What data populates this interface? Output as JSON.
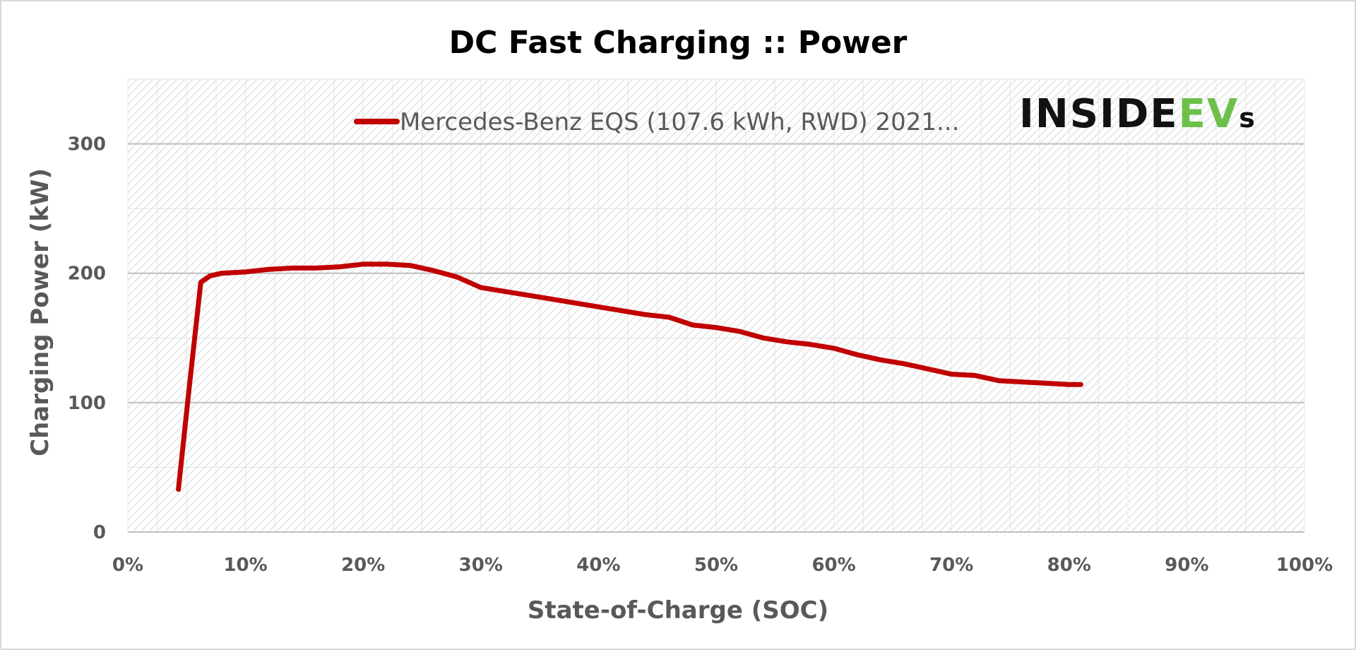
{
  "chart_data": {
    "type": "line",
    "title": "DC Fast Charging :: Power",
    "xlabel": "State-of-Charge  (SOC)",
    "ylabel": "Charging Power (kW)",
    "xlim": [
      0,
      100
    ],
    "ylim": [
      0,
      350
    ],
    "x_ticks": [
      0,
      10,
      20,
      30,
      40,
      50,
      60,
      70,
      80,
      90,
      100
    ],
    "x_tick_labels": [
      "0%",
      "10%",
      "20%",
      "30%",
      "40%",
      "50%",
      "60%",
      "70%",
      "80%",
      "90%",
      "100%"
    ],
    "y_ticks": [
      0,
      100,
      200,
      300
    ],
    "y_tick_labels": [
      "0",
      "100",
      "200",
      "300"
    ],
    "grid": true,
    "legend_position": "top-right",
    "series": [
      {
        "name": "Mercedes-Benz EQS (107.6 kWh, RWD) 2021...",
        "color": "#C00000",
        "x": [
          4.3,
          5.2,
          6.2,
          7.0,
          8.0,
          10,
          12,
          14,
          16,
          18,
          20,
          22,
          24,
          26,
          28,
          30,
          32,
          34,
          36,
          38,
          40,
          42,
          44,
          46,
          48,
          50,
          52,
          54,
          56,
          58,
          60,
          62,
          64,
          66,
          68,
          70,
          72,
          74,
          76,
          78,
          80,
          81
        ],
        "values": [
          33,
          110,
          193,
          198,
          200,
          201,
          203,
          204,
          204,
          205,
          207,
          207,
          206,
          202,
          197,
          189,
          186,
          183,
          180,
          177,
          174,
          171,
          168,
          166,
          160,
          158,
          155,
          150,
          147,
          145,
          142,
          137,
          133,
          130,
          126,
          122,
          121,
          117,
          116,
          115,
          114,
          114
        ]
      }
    ]
  },
  "logo": {
    "text_dark": "INSIDE",
    "text_green": "EV",
    "text_small": "s",
    "color_dark": "#111111",
    "color_green": "#6CC04A"
  },
  "colors": {
    "gridline": "#bfbfbf",
    "plot_hatch": "#dcdcdc",
    "axis_text": "#595959",
    "border": "#d9d9d9"
  }
}
